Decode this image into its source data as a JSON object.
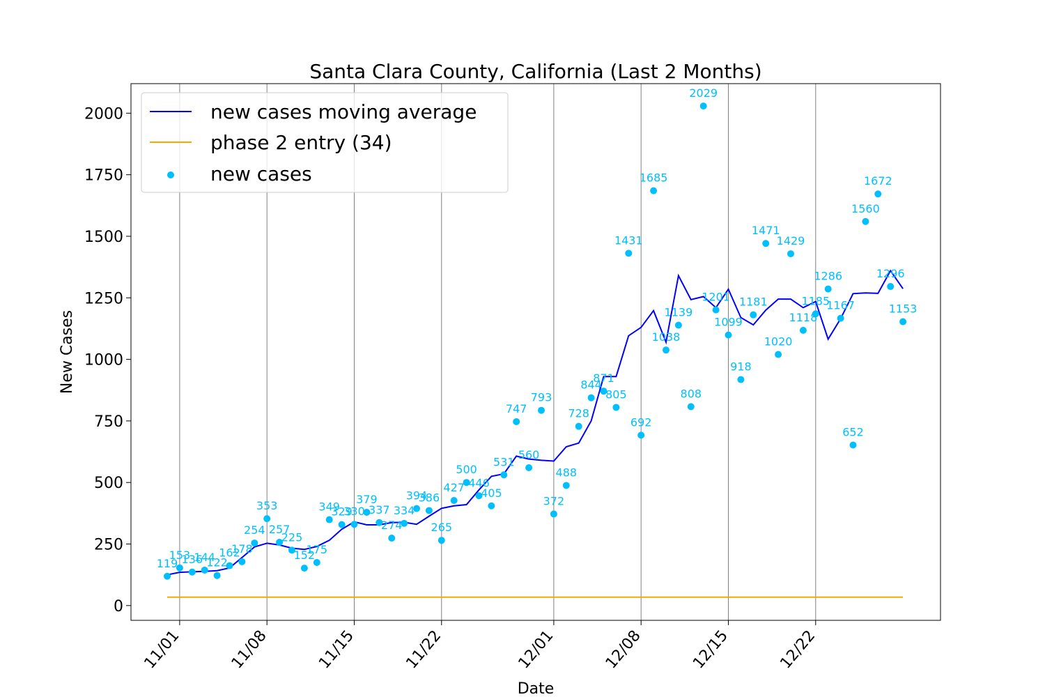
{
  "chart_data": {
    "type": "line",
    "title": "Santa Clara County, California (Last 2 Months)",
    "xlabel": "Date",
    "ylabel": "New Cases",
    "x_ticks": [
      "11/01",
      "11/08",
      "11/15",
      "11/22",
      "12/01",
      "12/08",
      "12/15",
      "12/22"
    ],
    "y_ticks": [
      0,
      250,
      500,
      750,
      1000,
      1250,
      1500,
      1750,
      2000
    ],
    "ylim": [
      -60,
      2120
    ],
    "grid": "vertical",
    "legend_position": "top-left",
    "legend": [
      "new cases moving average",
      "phase 2 entry (34)",
      "new cases"
    ],
    "dates": [
      "10/31",
      "11/01",
      "11/02",
      "11/03",
      "11/04",
      "11/05",
      "11/06",
      "11/07",
      "11/08",
      "11/09",
      "11/10",
      "11/11",
      "11/12",
      "11/13",
      "11/14",
      "11/15",
      "11/16",
      "11/17",
      "11/18",
      "11/19",
      "11/20",
      "11/21",
      "11/22",
      "11/23",
      "11/24",
      "11/25",
      "11/26",
      "11/27",
      "11/28",
      "11/29",
      "11/30",
      "12/01",
      "12/02",
      "12/03",
      "12/04",
      "12/05",
      "12/06",
      "12/07",
      "12/08",
      "12/09",
      "12/10",
      "12/11",
      "12/12",
      "12/13",
      "12/14",
      "12/15",
      "12/16",
      "12/17",
      "12/18",
      "12/19",
      "12/20",
      "12/21",
      "12/22",
      "12/23",
      "12/24",
      "12/25",
      "12/26",
      "12/27",
      "12/28",
      "12/29"
    ],
    "series": [
      {
        "name": "new cases",
        "type": "scatter",
        "color": "#00bfff",
        "values": [
          119,
          153,
          136,
          144,
          122,
          162,
          178,
          254,
          353,
          257,
          225,
          152,
          175,
          349,
          329,
          330,
          379,
          337,
          274,
          334,
          394,
          386,
          265,
          427,
          500,
          446,
          405,
          531,
          747,
          560,
          793,
          372,
          488,
          728,
          844,
          871,
          805,
          1431,
          692,
          1685,
          1038,
          1139,
          808,
          2029,
          1201,
          1099,
          918,
          1181,
          1471,
          1020,
          1429,
          1118,
          1185,
          1286,
          1167,
          652,
          1560,
          1672,
          1296,
          1153
        ]
      },
      {
        "name": "new cases moving average",
        "type": "line",
        "color": "#0000ff",
        "values": [
          125,
          135,
          137,
          139,
          142,
          153,
          195,
          238,
          253,
          246,
          233,
          228,
          240,
          265,
          310,
          340,
          328,
          328,
          337,
          338,
          330,
          363,
          395,
          405,
          410,
          470,
          525,
          535,
          607,
          595,
          590,
          587,
          645,
          660,
          750,
          930,
          930,
          1096,
          1130,
          1198,
          1070,
          1340,
          1243,
          1255,
          1210,
          1285,
          1170,
          1140,
          1200,
          1245,
          1245,
          1210,
          1235,
          1082,
          1165,
          1267,
          1270,
          1268,
          1360,
          1287
        ]
      },
      {
        "name": "phase 2 entry (34)",
        "type": "line",
        "color": "#ffa500",
        "values": [
          34,
          34,
          34,
          34,
          34,
          34,
          34,
          34,
          34,
          34,
          34,
          34,
          34,
          34,
          34,
          34,
          34,
          34,
          34,
          34,
          34,
          34,
          34,
          34,
          34,
          34,
          34,
          34,
          34,
          34,
          34,
          34,
          34,
          34,
          34,
          34,
          34,
          34,
          34,
          34,
          34,
          34,
          34,
          34,
          34,
          34,
          34,
          34,
          34,
          34,
          34,
          34,
          34,
          34,
          34,
          34,
          34,
          34,
          34,
          34
        ]
      }
    ]
  }
}
